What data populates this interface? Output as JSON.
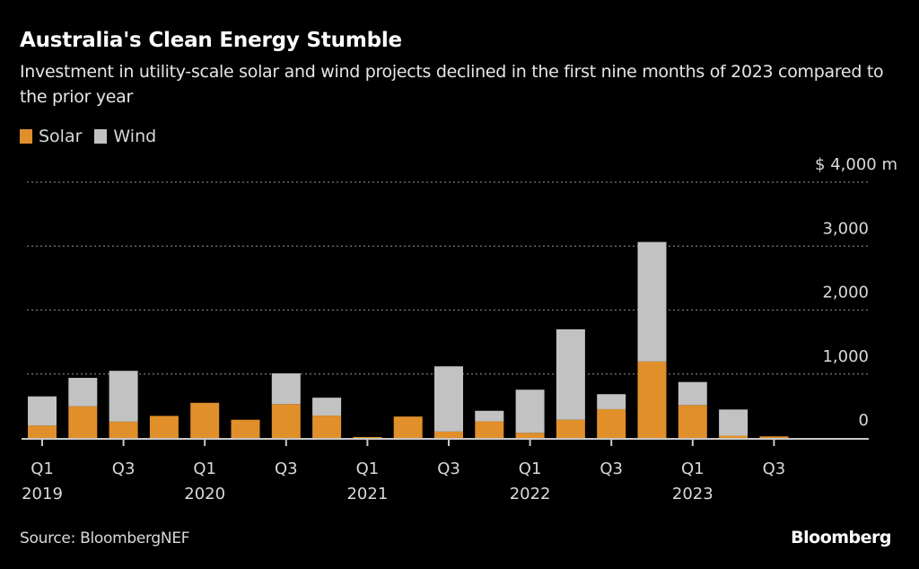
{
  "header": {
    "title": "Australia's Clean Energy Stumble",
    "subtitle": "Investment in utility-scale solar and wind projects declined in the first nine months of 2023 compared to the prior year"
  },
  "legend": [
    {
      "label": "Solar",
      "color": "#E08F2A"
    },
    {
      "label": "Wind",
      "color": "#C2C2C2"
    }
  ],
  "footer": {
    "source": "Source: BloombergNEF",
    "brand": "Bloomberg"
  },
  "chart_data": {
    "type": "bar",
    "stacked": true,
    "title": "Australia's Clean Energy Stumble",
    "subtitle": "Investment in utility-scale solar and wind projects declined in the first nine months of 2023 compared to the prior year",
    "xlabel": "",
    "ylabel": "$ m",
    "y_unit_label": "$ 4,000  m",
    "ylim": [
      0,
      4000
    ],
    "yticks": [
      0,
      1000,
      2000,
      3000,
      4000
    ],
    "ytick_labels": [
      "0",
      "1,000",
      "2,000",
      "3,000",
      "$ 4,000  m"
    ],
    "grid": true,
    "legend_position": "top-left",
    "categories": [
      "Q1 2019",
      "Q2 2019",
      "Q3 2019",
      "Q4 2019",
      "Q1 2020",
      "Q2 2020",
      "Q3 2020",
      "Q4 2020",
      "Q1 2021",
      "Q2 2021",
      "Q3 2021",
      "Q4 2021",
      "Q1 2022",
      "Q2 2022",
      "Q3 2022",
      "Q4 2022",
      "Q1 2023",
      "Q2 2023",
      "Q3 2023"
    ],
    "xtick_labels": [
      {
        "index": 0,
        "line1": "Q1",
        "line2": "2019"
      },
      {
        "index": 2,
        "line1": "Q3",
        "line2": ""
      },
      {
        "index": 4,
        "line1": "Q1",
        "line2": "2020"
      },
      {
        "index": 6,
        "line1": "Q3",
        "line2": ""
      },
      {
        "index": 8,
        "line1": "Q1",
        "line2": "2021"
      },
      {
        "index": 10,
        "line1": "Q3",
        "line2": ""
      },
      {
        "index": 12,
        "line1": "Q1",
        "line2": "2022"
      },
      {
        "index": 14,
        "line1": "Q3",
        "line2": ""
      },
      {
        "index": 16,
        "line1": "Q1",
        "line2": "2023"
      },
      {
        "index": 18,
        "line1": "Q3",
        "line2": ""
      }
    ],
    "series": [
      {
        "name": "Solar",
        "color": "#E08F2A",
        "values": [
          195,
          495,
          255,
          345,
          550,
          285,
          530,
          350,
          15,
          335,
          100,
          260,
          80,
          285,
          450,
          1195,
          515,
          35,
          25
        ]
      },
      {
        "name": "Wind",
        "color": "#C2C2C2",
        "values": [
          455,
          445,
          795,
          0,
          0,
          0,
          480,
          280,
          0,
          0,
          1020,
          165,
          675,
          1415,
          235,
          1870,
          360,
          410,
          0
        ]
      }
    ]
  }
}
